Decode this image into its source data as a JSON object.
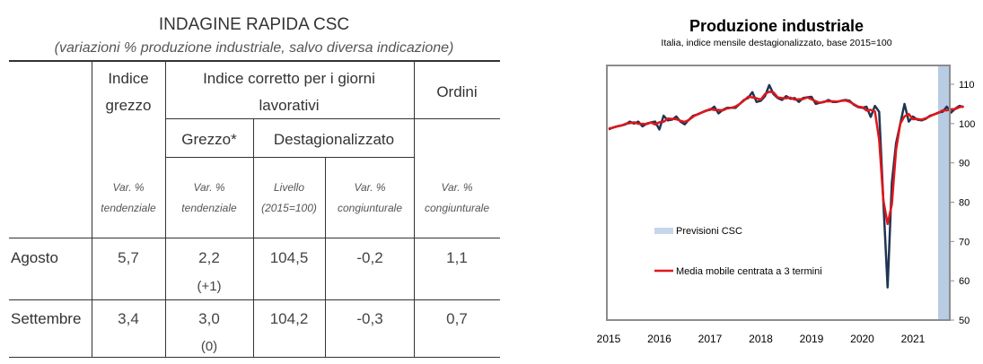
{
  "table": {
    "title": "INDAGINE RAPIDA CSC",
    "subtitle": "(variazioni % produzione industriale, salvo diversa indicazione)",
    "headers": {
      "indice_grezzo": [
        "Indice",
        "grezzo"
      ],
      "indice_corretto": [
        "Indice corretto per i giorni",
        "lavorativi"
      ],
      "ordini": "Ordini",
      "grezzo_star": "Grezzo*",
      "destagionalizzato": "Destagionalizzato"
    },
    "subheaders": [
      [
        "Var. %",
        "tendenziale"
      ],
      [
        "Var. %",
        "tendenziale"
      ],
      [
        "Livello",
        "(2015=100)"
      ],
      [
        "Var. %",
        "congiunturale"
      ],
      [
        "Var. %",
        "congiunturale"
      ]
    ],
    "rows": [
      {
        "label": "Agosto",
        "values": [
          "5,7",
          "2,2",
          "104,5",
          "-0,2",
          "1,1"
        ],
        "note": "(+1)"
      },
      {
        "label": "Settembre",
        "values": [
          "3,4",
          "3,0",
          "104,2",
          "-0,3",
          "0,7"
        ],
        "note": "(0)"
      }
    ]
  },
  "chart_data": {
    "type": "line",
    "title": "Produzione industriale",
    "subtitle": "Italia, indice mensile destagionalizzato, base 2015=100",
    "ylim": [
      50,
      110
    ],
    "yticks": [
      "50",
      "60",
      "70",
      "80",
      "90",
      "100",
      "110"
    ],
    "xticks": [
      "2015",
      "2016",
      "2017",
      "2018",
      "2019",
      "2020",
      "2021"
    ],
    "y_axis_side": "right",
    "grid": false,
    "legend_position": "center-left",
    "start": "2015-01",
    "frequency": "monthly",
    "series": [
      {
        "color": "#1f3552",
        "values": [
          98.5,
          99,
          99.3,
          99.5,
          99.8,
          100.5,
          100,
          100.5,
          99.3,
          100,
          100.3,
          100.5,
          98.5,
          102,
          100.8,
          101,
          101.8,
          100.5,
          99.8,
          101,
          102,
          102.3,
          102.8,
          103.3,
          103.5,
          104.3,
          102.6,
          103.5,
          104,
          104,
          104,
          105,
          106,
          106.5,
          108,
          105.5,
          105.8,
          107,
          109.8,
          107.5,
          106.5,
          106,
          107,
          106.3,
          106.5,
          105.5,
          106.5,
          106.7,
          106.8,
          105,
          105.3,
          105.5,
          106,
          105.5,
          105.5,
          105.8,
          106,
          105.8,
          104.8,
          104.2,
          104,
          104.3,
          101.7,
          104.5,
          103,
          80,
          58.3,
          85,
          95,
          100,
          105,
          100.5,
          101.8,
          101,
          100.8,
          101.2,
          102,
          102.3,
          102.8,
          103,
          104.3,
          102.8,
          103.8,
          104.5,
          104.2
        ]
      },
      {
        "name": "Media mobile centrata a 3 termini",
        "color": "#e0161b"
      }
    ],
    "forecast_band": {
      "name": "Previsioni CSC",
      "color": "#b8cce4",
      "from": "2021-08",
      "to": "2021-09"
    }
  }
}
